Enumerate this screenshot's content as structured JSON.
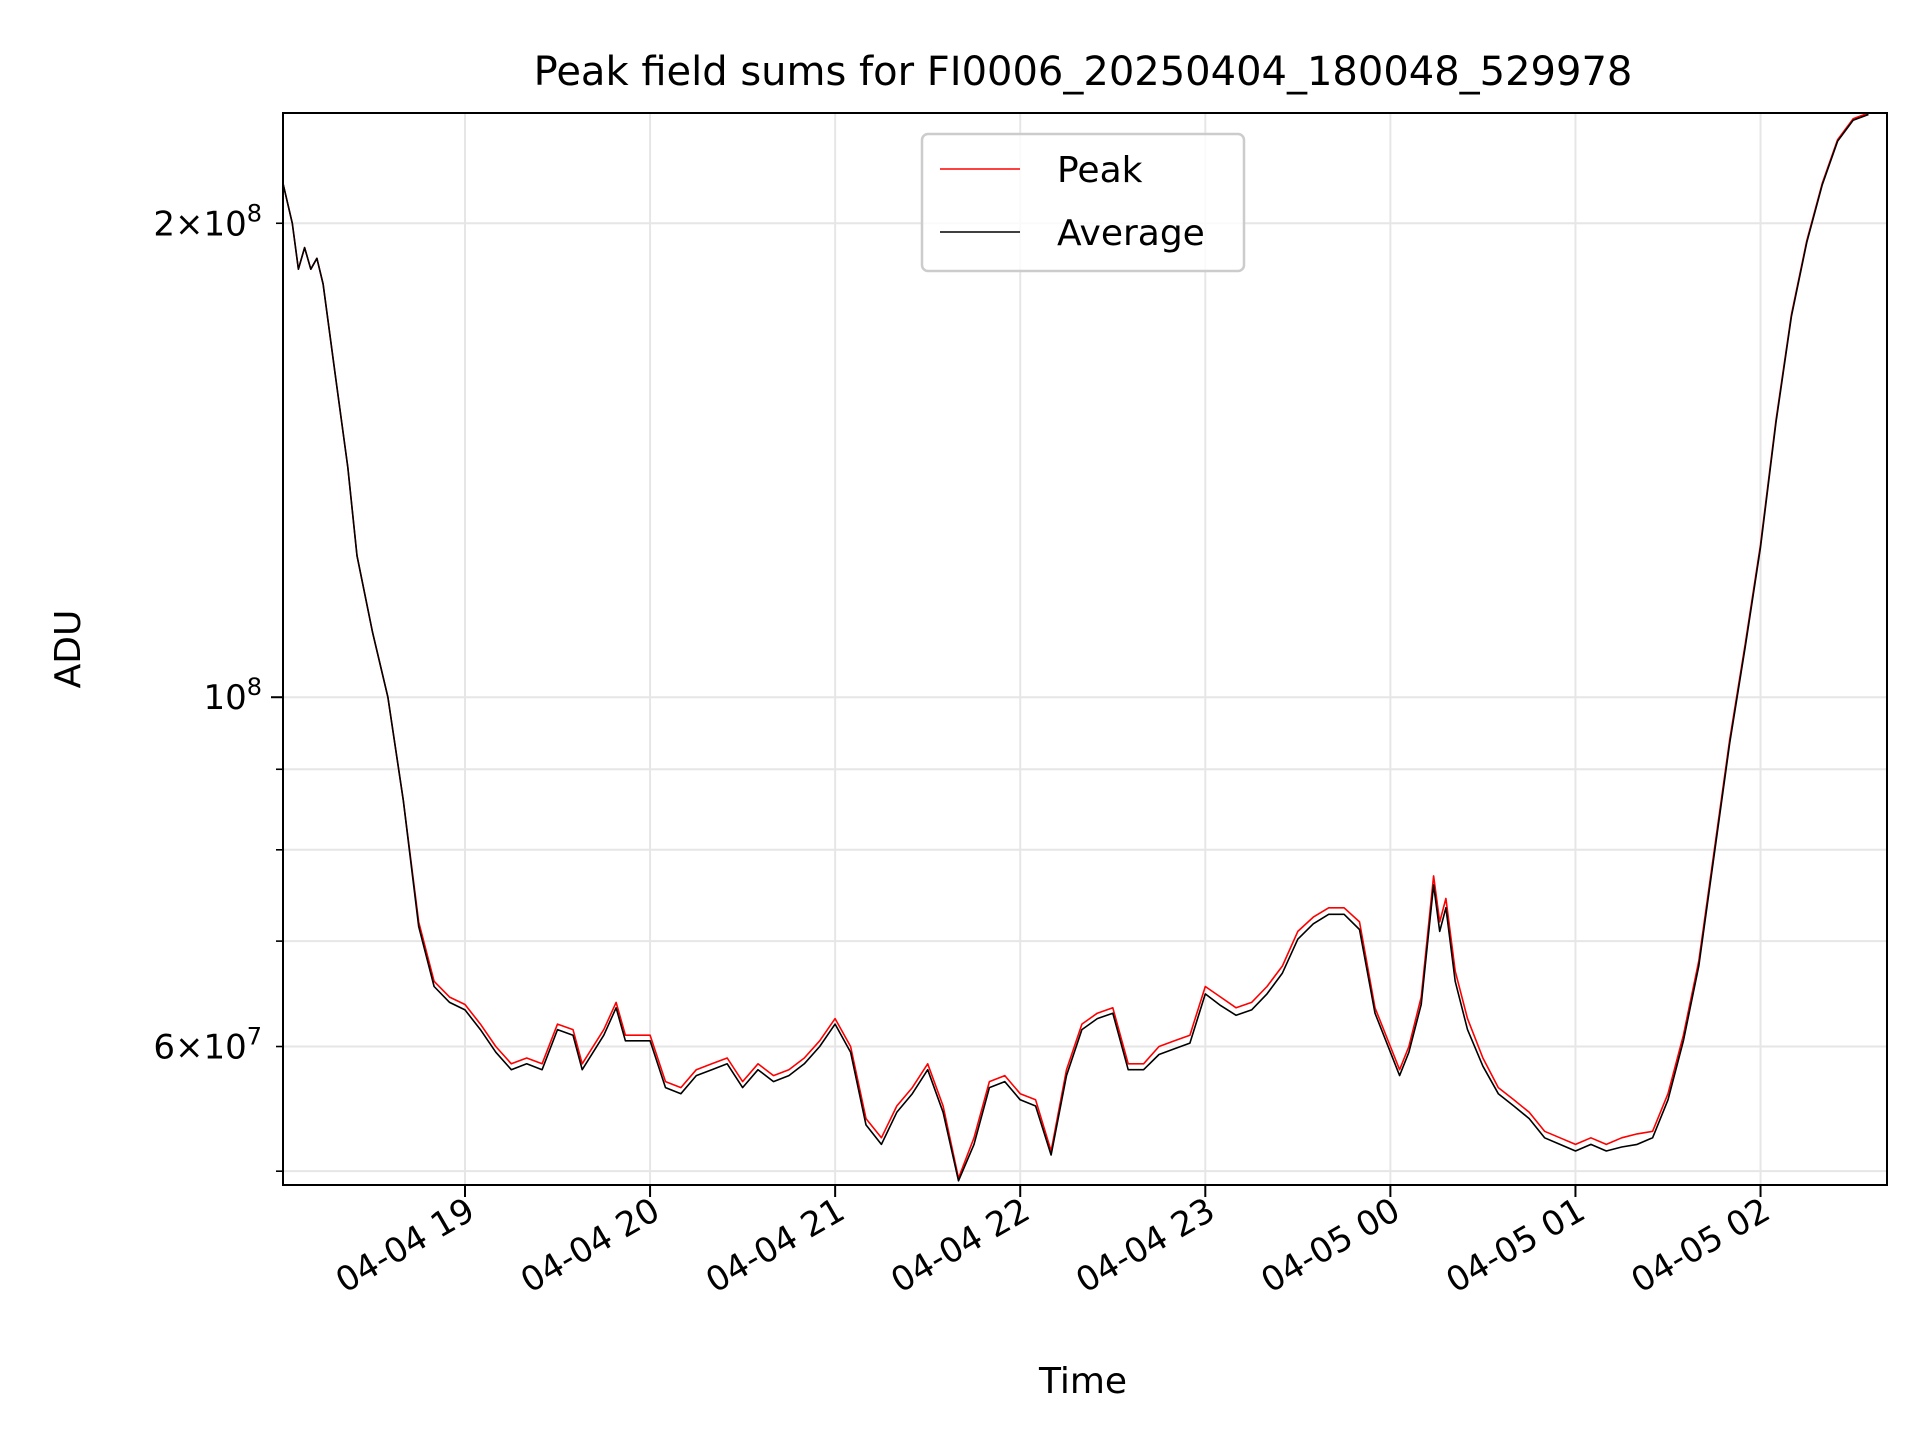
{
  "chart_data": {
    "type": "line",
    "title": "Peak field sums for FI0006_20250404_180048_529978",
    "xlabel": "Time",
    "ylabel": "ADU",
    "y_scale": "log",
    "grid": true,
    "legend_placement": "upper center",
    "xlim": [
      "2025-04-04 18:01",
      "2025-04-05 02:41"
    ],
    "ylim": [
      49000000,
      235000000
    ],
    "x_ticks": [
      "2025-04-04 19:00",
      "2025-04-04 20:00",
      "2025-04-04 21:00",
      "2025-04-04 22:00",
      "2025-04-04 23:00",
      "2025-04-05 00:00",
      "2025-04-05 01:00",
      "2025-04-05 02:00"
    ],
    "x_tick_labels": [
      "04-04 19",
      "04-04 20",
      "04-04 21",
      "04-04 22",
      "04-04 23",
      "04-05 00",
      "04-05 01",
      "04-05 02"
    ],
    "y_major_ticks": [
      100000000
    ],
    "y_major_labels": [
      "10^8"
    ],
    "y_minor_ticks": [
      50000000,
      60000000,
      70000000,
      80000000,
      90000000,
      200000000
    ],
    "y_minor_labels": {
      "60000000": "6×10^7",
      "200000000": "2×10^8"
    },
    "series": [
      {
        "name": "Peak",
        "color": "#ff0000",
        "points": [
          [
            "2025-04-04 18:01",
            212000000
          ],
          [
            "2025-04-04 18:04",
            200000000
          ],
          [
            "2025-04-04 18:06",
            187000000
          ],
          [
            "2025-04-04 18:08",
            193000000
          ],
          [
            "2025-04-04 18:10",
            187000000
          ],
          [
            "2025-04-04 18:12",
            190000000
          ],
          [
            "2025-04-04 18:14",
            183000000
          ],
          [
            "2025-04-04 18:18",
            160000000
          ],
          [
            "2025-04-04 18:22",
            140000000
          ],
          [
            "2025-04-04 18:25",
            123000000
          ],
          [
            "2025-04-04 18:30",
            110000000
          ],
          [
            "2025-04-04 18:35",
            100000000
          ],
          [
            "2025-04-04 18:40",
            86000000
          ],
          [
            "2025-04-04 18:45",
            72000000
          ],
          [
            "2025-04-04 18:50",
            66000000
          ],
          [
            "2025-04-04 18:55",
            64500000
          ],
          [
            "2025-04-04 19:00",
            63800000
          ],
          [
            "2025-04-04 19:05",
            62000000
          ],
          [
            "2025-04-04 19:10",
            60000000
          ],
          [
            "2025-04-04 19:15",
            58500000
          ],
          [
            "2025-04-04 19:20",
            59000000
          ],
          [
            "2025-04-04 19:25",
            58500000
          ],
          [
            "2025-04-04 19:30",
            62000000
          ],
          [
            "2025-04-04 19:35",
            61500000
          ],
          [
            "2025-04-04 19:38",
            58500000
          ],
          [
            "2025-04-04 19:45",
            61500000
          ],
          [
            "2025-04-04 19:49",
            64000000
          ],
          [
            "2025-04-04 19:52",
            61000000
          ],
          [
            "2025-04-04 20:00",
            61000000
          ],
          [
            "2025-04-04 20:05",
            57000000
          ],
          [
            "2025-04-04 20:10",
            56500000
          ],
          [
            "2025-04-04 20:15",
            58000000
          ],
          [
            "2025-04-04 20:20",
            58500000
          ],
          [
            "2025-04-04 20:25",
            59000000
          ],
          [
            "2025-04-04 20:30",
            57000000
          ],
          [
            "2025-04-04 20:35",
            58500000
          ],
          [
            "2025-04-04 20:40",
            57500000
          ],
          [
            "2025-04-04 20:45",
            58000000
          ],
          [
            "2025-04-04 20:50",
            59000000
          ],
          [
            "2025-04-04 20:55",
            60500000
          ],
          [
            "2025-04-04 21:00",
            62500000
          ],
          [
            "2025-04-04 21:05",
            60000000
          ],
          [
            "2025-04-04 21:10",
            54000000
          ],
          [
            "2025-04-04 21:15",
            52500000
          ],
          [
            "2025-04-04 21:20",
            55000000
          ],
          [
            "2025-04-04 21:25",
            56500000
          ],
          [
            "2025-04-04 21:30",
            58500000
          ],
          [
            "2025-04-04 21:35",
            55000000
          ],
          [
            "2025-04-04 21:40",
            49500000
          ],
          [
            "2025-04-04 21:45",
            52500000
          ],
          [
            "2025-04-04 21:50",
            57000000
          ],
          [
            "2025-04-04 21:55",
            57500000
          ],
          [
            "2025-04-04 22:00",
            56000000
          ],
          [
            "2025-04-04 22:05",
            55500000
          ],
          [
            "2025-04-04 22:10",
            51500000
          ],
          [
            "2025-04-04 22:15",
            58000000
          ],
          [
            "2025-04-04 22:20",
            62000000
          ],
          [
            "2025-04-04 22:25",
            63000000
          ],
          [
            "2025-04-04 22:30",
            63500000
          ],
          [
            "2025-04-04 22:35",
            58500000
          ],
          [
            "2025-04-04 22:40",
            58500000
          ],
          [
            "2025-04-04 22:45",
            60000000
          ],
          [
            "2025-04-04 22:50",
            60500000
          ],
          [
            "2025-04-04 22:55",
            61000000
          ],
          [
            "2025-04-04 23:00",
            65500000
          ],
          [
            "2025-04-04 23:05",
            64500000
          ],
          [
            "2025-04-04 23:10",
            63500000
          ],
          [
            "2025-04-04 23:15",
            64000000
          ],
          [
            "2025-04-04 23:20",
            65500000
          ],
          [
            "2025-04-04 23:25",
            67500000
          ],
          [
            "2025-04-04 23:30",
            71000000
          ],
          [
            "2025-04-04 23:35",
            72500000
          ],
          [
            "2025-04-04 23:40",
            73500000
          ],
          [
            "2025-04-04 23:45",
            73500000
          ],
          [
            "2025-04-04 23:50",
            72000000
          ],
          [
            "2025-04-04 23:55",
            63500000
          ],
          [
            "2025-04-05 00:00",
            60000000
          ],
          [
            "2025-04-05 00:03",
            58000000
          ],
          [
            "2025-04-05 00:06",
            60000000
          ],
          [
            "2025-04-05 00:10",
            64500000
          ],
          [
            "2025-04-05 00:14",
            77000000
          ],
          [
            "2025-04-05 00:16",
            72000000
          ],
          [
            "2025-04-05 00:18",
            74500000
          ],
          [
            "2025-04-05 00:21",
            67000000
          ],
          [
            "2025-04-05 00:25",
            62500000
          ],
          [
            "2025-04-05 00:30",
            59000000
          ],
          [
            "2025-04-05 00:35",
            56500000
          ],
          [
            "2025-04-05 00:40",
            55500000
          ],
          [
            "2025-04-05 00:45",
            54500000
          ],
          [
            "2025-04-05 00:50",
            53000000
          ],
          [
            "2025-04-05 00:55",
            52500000
          ],
          [
            "2025-04-05 01:00",
            52000000
          ],
          [
            "2025-04-05 01:05",
            52500000
          ],
          [
            "2025-04-05 01:10",
            52000000
          ],
          [
            "2025-04-05 01:15",
            52500000
          ],
          [
            "2025-04-05 01:20",
            52800000
          ],
          [
            "2025-04-05 01:25",
            53000000
          ],
          [
            "2025-04-05 01:30",
            56000000
          ],
          [
            "2025-04-05 01:35",
            61000000
          ],
          [
            "2025-04-05 01:40",
            68000000
          ],
          [
            "2025-04-05 01:45",
            80000000
          ],
          [
            "2025-04-05 01:50",
            94000000
          ],
          [
            "2025-04-05 01:55",
            108000000
          ],
          [
            "2025-04-05 02:00",
            125000000
          ],
          [
            "2025-04-05 02:05",
            150000000
          ],
          [
            "2025-04-05 02:10",
            175000000
          ],
          [
            "2025-04-05 02:15",
            195000000
          ],
          [
            "2025-04-05 02:20",
            212000000
          ],
          [
            "2025-04-05 02:25",
            226000000
          ],
          [
            "2025-04-05 02:30",
            233000000
          ],
          [
            "2025-04-05 02:35",
            235000000
          ]
        ]
      },
      {
        "name": "Average",
        "color": "#000000",
        "points": [
          [
            "2025-04-04 18:01",
            212000000
          ],
          [
            "2025-04-04 18:04",
            200000000
          ],
          [
            "2025-04-04 18:06",
            187000000
          ],
          [
            "2025-04-04 18:08",
            193000000
          ],
          [
            "2025-04-04 18:10",
            187000000
          ],
          [
            "2025-04-04 18:12",
            190000000
          ],
          [
            "2025-04-04 18:14",
            183000000
          ],
          [
            "2025-04-04 18:18",
            160000000
          ],
          [
            "2025-04-04 18:22",
            140000000
          ],
          [
            "2025-04-04 18:25",
            123000000
          ],
          [
            "2025-04-04 18:30",
            110000000
          ],
          [
            "2025-04-04 18:35",
            100000000
          ],
          [
            "2025-04-04 18:40",
            86000000
          ],
          [
            "2025-04-04 18:45",
            71500000
          ],
          [
            "2025-04-04 18:50",
            65500000
          ],
          [
            "2025-04-04 18:55",
            64000000
          ],
          [
            "2025-04-04 19:00",
            63300000
          ],
          [
            "2025-04-04 19:05",
            61500000
          ],
          [
            "2025-04-04 19:10",
            59500000
          ],
          [
            "2025-04-04 19:15",
            58000000
          ],
          [
            "2025-04-04 19:20",
            58500000
          ],
          [
            "2025-04-04 19:25",
            58000000
          ],
          [
            "2025-04-04 19:30",
            61500000
          ],
          [
            "2025-04-04 19:35",
            61000000
          ],
          [
            "2025-04-04 19:38",
            58000000
          ],
          [
            "2025-04-04 19:45",
            61000000
          ],
          [
            "2025-04-04 19:49",
            63500000
          ],
          [
            "2025-04-04 19:52",
            60500000
          ],
          [
            "2025-04-04 20:00",
            60500000
          ],
          [
            "2025-04-04 20:05",
            56500000
          ],
          [
            "2025-04-04 20:10",
            56000000
          ],
          [
            "2025-04-04 20:15",
            57500000
          ],
          [
            "2025-04-04 20:20",
            58000000
          ],
          [
            "2025-04-04 20:25",
            58500000
          ],
          [
            "2025-04-04 20:30",
            56500000
          ],
          [
            "2025-04-04 20:35",
            58000000
          ],
          [
            "2025-04-04 20:40",
            57000000
          ],
          [
            "2025-04-04 20:45",
            57500000
          ],
          [
            "2025-04-04 20:50",
            58500000
          ],
          [
            "2025-04-04 20:55",
            60000000
          ],
          [
            "2025-04-04 21:00",
            62000000
          ],
          [
            "2025-04-04 21:05",
            59500000
          ],
          [
            "2025-04-04 21:10",
            53500000
          ],
          [
            "2025-04-04 21:15",
            52000000
          ],
          [
            "2025-04-04 21:20",
            54500000
          ],
          [
            "2025-04-04 21:25",
            56000000
          ],
          [
            "2025-04-04 21:30",
            58000000
          ],
          [
            "2025-04-04 21:35",
            54500000
          ],
          [
            "2025-04-04 21:40",
            49300000
          ],
          [
            "2025-04-04 21:45",
            52000000
          ],
          [
            "2025-04-04 21:50",
            56500000
          ],
          [
            "2025-04-04 21:55",
            57000000
          ],
          [
            "2025-04-04 22:00",
            55500000
          ],
          [
            "2025-04-04 22:05",
            55000000
          ],
          [
            "2025-04-04 22:10",
            51200000
          ],
          [
            "2025-04-04 22:15",
            57500000
          ],
          [
            "2025-04-04 22:20",
            61500000
          ],
          [
            "2025-04-04 22:25",
            62500000
          ],
          [
            "2025-04-04 22:30",
            63000000
          ],
          [
            "2025-04-04 22:35",
            58000000
          ],
          [
            "2025-04-04 22:40",
            58000000
          ],
          [
            "2025-04-04 22:45",
            59300000
          ],
          [
            "2025-04-04 22:50",
            59800000
          ],
          [
            "2025-04-04 22:55",
            60300000
          ],
          [
            "2025-04-04 23:00",
            64800000
          ],
          [
            "2025-04-04 23:05",
            63700000
          ],
          [
            "2025-04-04 23:10",
            62800000
          ],
          [
            "2025-04-04 23:15",
            63300000
          ],
          [
            "2025-04-04 23:20",
            64800000
          ],
          [
            "2025-04-04 23:25",
            66800000
          ],
          [
            "2025-04-04 23:30",
            70200000
          ],
          [
            "2025-04-04 23:35",
            71800000
          ],
          [
            "2025-04-04 23:40",
            72800000
          ],
          [
            "2025-04-04 23:45",
            72800000
          ],
          [
            "2025-04-04 23:50",
            71200000
          ],
          [
            "2025-04-04 23:55",
            63000000
          ],
          [
            "2025-04-05 00:00",
            59500000
          ],
          [
            "2025-04-05 00:03",
            57500000
          ],
          [
            "2025-04-05 00:06",
            59500000
          ],
          [
            "2025-04-05 00:10",
            63800000
          ],
          [
            "2025-04-05 00:14",
            76000000
          ],
          [
            "2025-04-05 00:16",
            71000000
          ],
          [
            "2025-04-05 00:18",
            73500000
          ],
          [
            "2025-04-05 00:21",
            66000000
          ],
          [
            "2025-04-05 00:25",
            61500000
          ],
          [
            "2025-04-05 00:30",
            58300000
          ],
          [
            "2025-04-05 00:35",
            56000000
          ],
          [
            "2025-04-05 00:40",
            55000000
          ],
          [
            "2025-04-05 00:45",
            54000000
          ],
          [
            "2025-04-05 00:50",
            52500000
          ],
          [
            "2025-04-05 00:55",
            52000000
          ],
          [
            "2025-04-05 01:00",
            51500000
          ],
          [
            "2025-04-05 01:05",
            52000000
          ],
          [
            "2025-04-05 01:10",
            51500000
          ],
          [
            "2025-04-05 01:15",
            51800000
          ],
          [
            "2025-04-05 01:20",
            52000000
          ],
          [
            "2025-04-05 01:25",
            52500000
          ],
          [
            "2025-04-05 01:30",
            55500000
          ],
          [
            "2025-04-05 01:35",
            60500000
          ],
          [
            "2025-04-05 01:40",
            67500000
          ],
          [
            "2025-04-05 01:45",
            79500000
          ],
          [
            "2025-04-05 01:50",
            93500000
          ],
          [
            "2025-04-05 01:55",
            107500000
          ],
          [
            "2025-04-05 02:00",
            124500000
          ],
          [
            "2025-04-05 02:05",
            149500000
          ],
          [
            "2025-04-05 02:10",
            174500000
          ],
          [
            "2025-04-05 02:15",
            194500000
          ],
          [
            "2025-04-05 02:20",
            211500000
          ],
          [
            "2025-04-05 02:25",
            225500000
          ],
          [
            "2025-04-05 02:30",
            232500000
          ],
          [
            "2025-04-05 02:35",
            234500000
          ]
        ]
      }
    ]
  },
  "colors": {
    "grid": "#e6e6e6",
    "axis": "#000000",
    "legend_border": "#cccccc"
  }
}
